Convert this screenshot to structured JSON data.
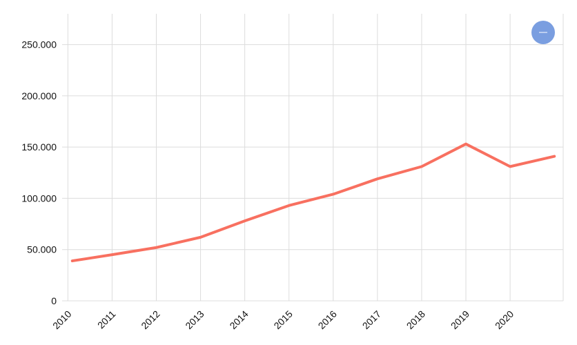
{
  "chart_data": {
    "type": "line",
    "title": "",
    "xlabel": "",
    "ylabel": "",
    "x": [
      2010.1,
      2011,
      2012,
      2013,
      2014,
      2015,
      2016,
      2017,
      2018,
      2019,
      2020,
      2021
    ],
    "series": [
      {
        "color": "#f87060",
        "values": [
          39000,
          45000,
          52000,
          62000,
          78000,
          93000,
          104000,
          119000,
          131000,
          153000,
          131000,
          141000
        ]
      }
    ],
    "ylim": [
      0,
      280000
    ],
    "xlim": [
      2009.87,
      2021.2
    ],
    "y_ticks": [
      {
        "value": 0,
        "label": "0"
      },
      {
        "value": 50000,
        "label": "50.000"
      },
      {
        "value": 100000,
        "label": "100.000"
      },
      {
        "value": 150000,
        "label": "150.000"
      },
      {
        "value": 200000,
        "label": "200.000"
      },
      {
        "value": 250000,
        "label": "250.000"
      }
    ],
    "x_ticks": [
      {
        "value": 2010,
        "label": "2010"
      },
      {
        "value": 2011,
        "label": "2011"
      },
      {
        "value": 2012,
        "label": "2012"
      },
      {
        "value": 2013,
        "label": "2013"
      },
      {
        "value": 2014,
        "label": "2014"
      },
      {
        "value": 2015,
        "label": "2015"
      },
      {
        "value": 2016,
        "label": "2016"
      },
      {
        "value": 2017,
        "label": "2017"
      },
      {
        "value": 2018,
        "label": "2018"
      },
      {
        "value": 2019,
        "label": "2019"
      },
      {
        "value": 2020,
        "label": "2020"
      }
    ],
    "grid": true,
    "legend": "none"
  },
  "controls": {
    "zoom_out_icon": "minus-icon",
    "zoom_out_color": "#7a9ee0"
  }
}
